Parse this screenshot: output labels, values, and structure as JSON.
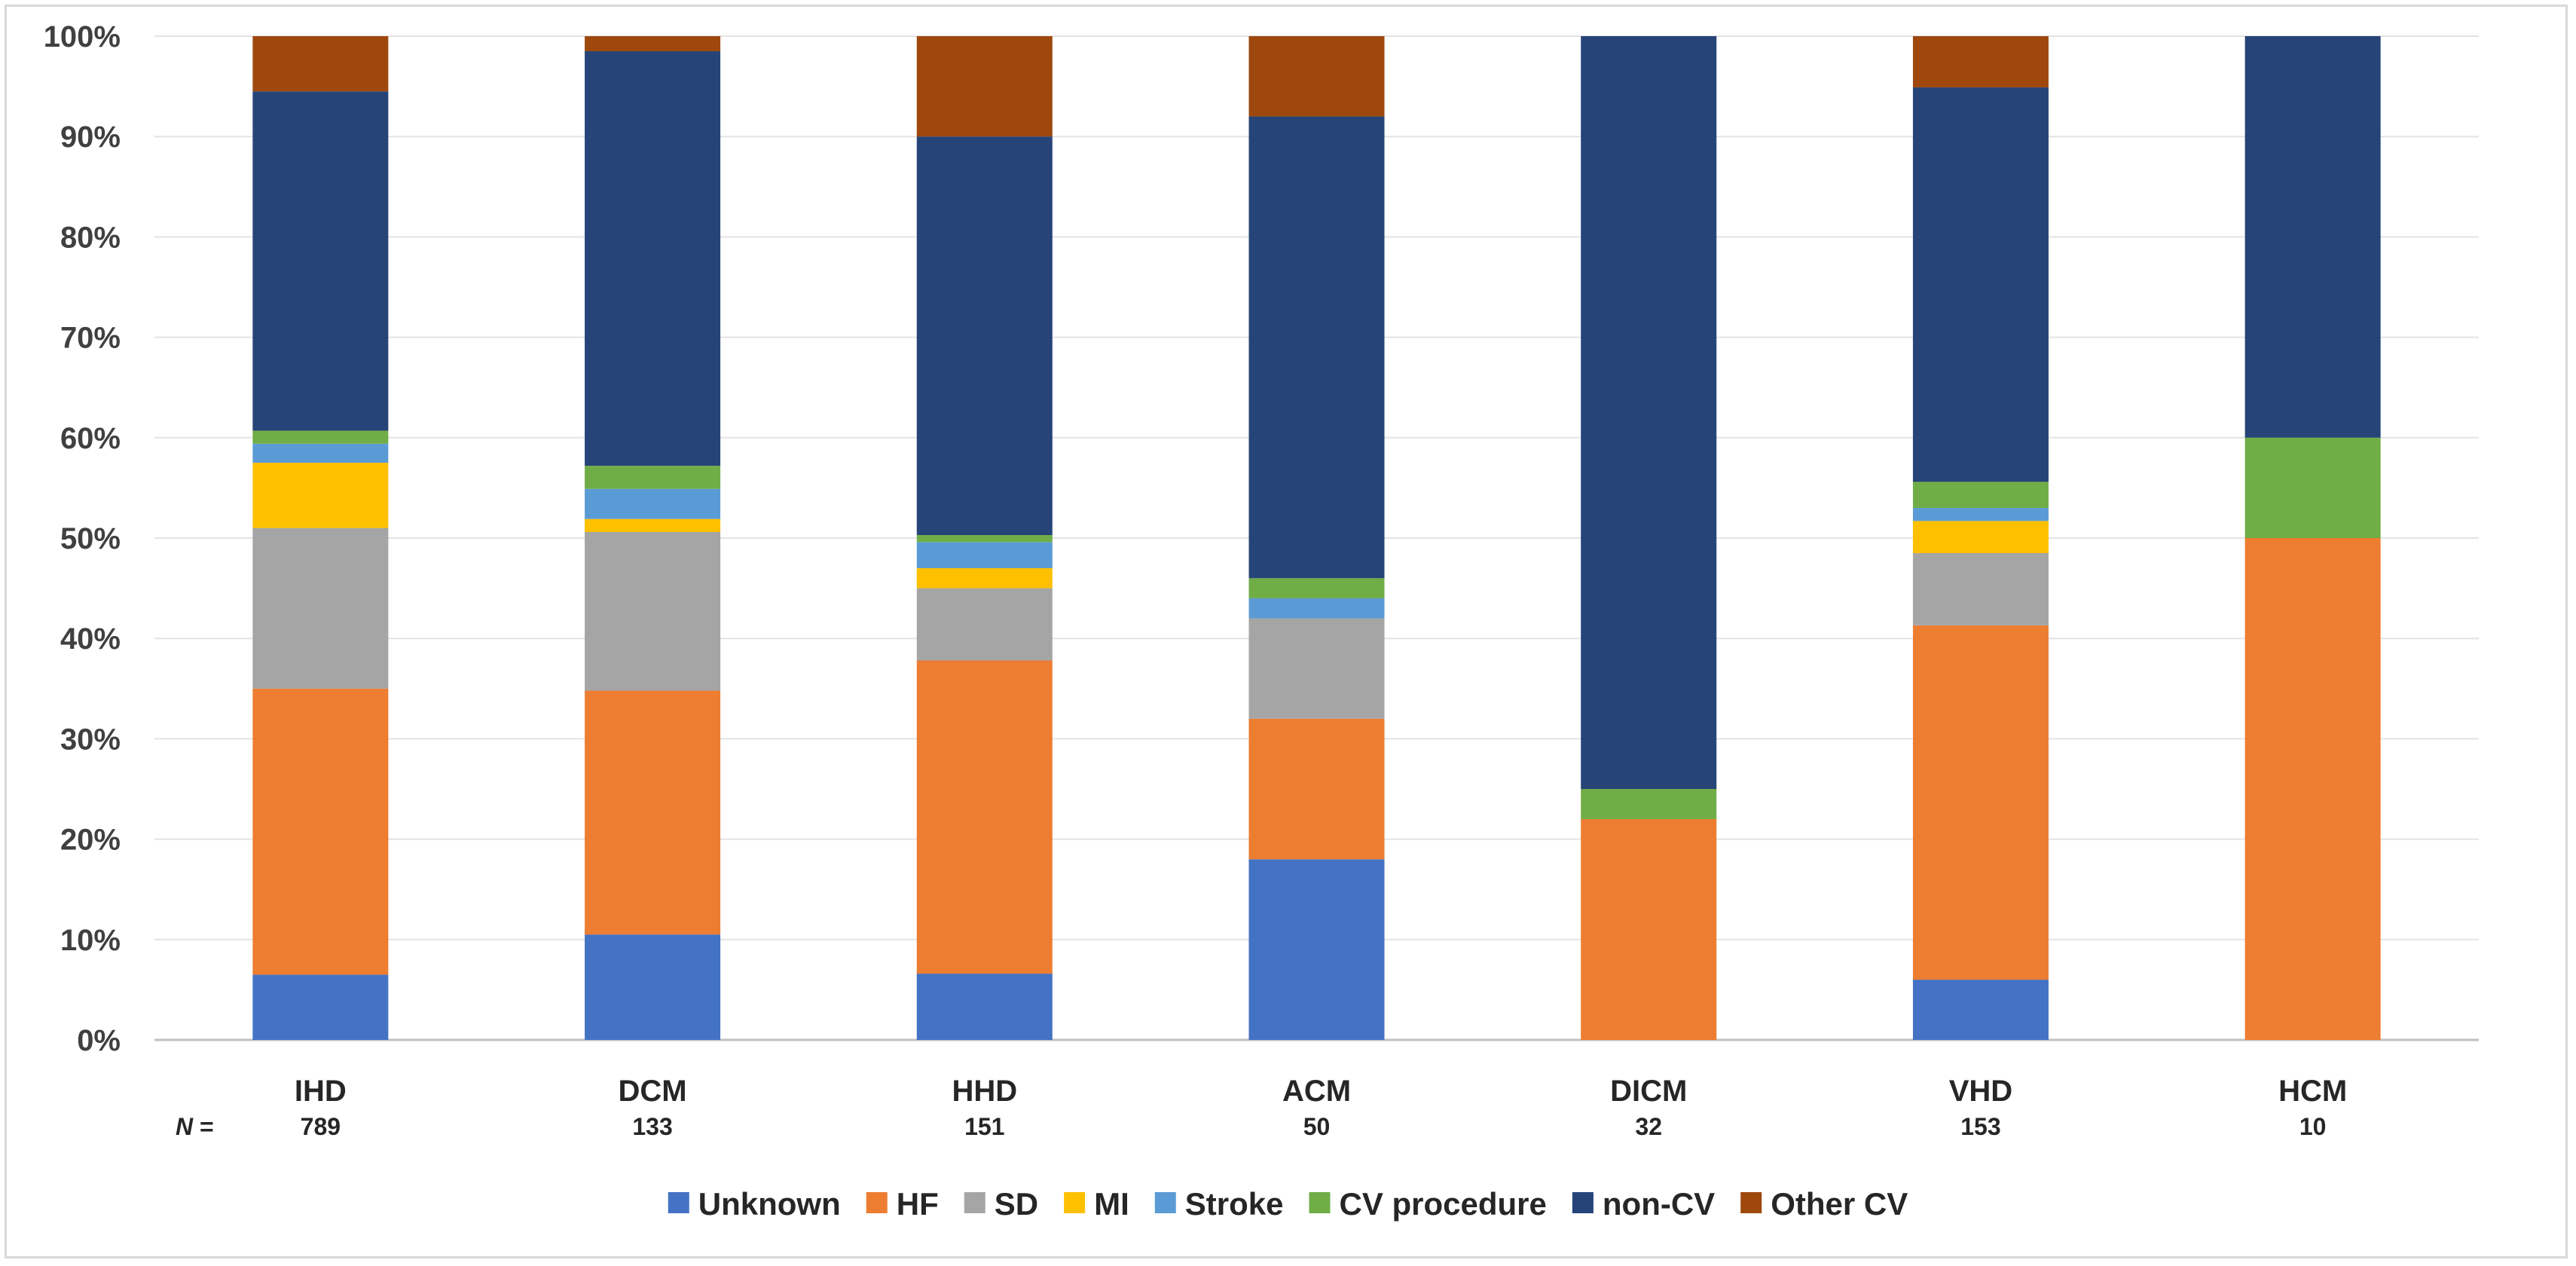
{
  "chart_data": {
    "type": "bar",
    "stacked": true,
    "categories": [
      "IHD",
      "DCM",
      "HHD",
      "ACM",
      "DICM",
      "VHD",
      "HCM"
    ],
    "n_label_prefix": "N",
    "n_label_suffix": " =",
    "n_values": [
      "789",
      "133",
      "151",
      "50",
      "32",
      "153",
      "10"
    ],
    "ylim": [
      0,
      100
    ],
    "yticks": [
      "0%",
      "10%",
      "20%",
      "30%",
      "40%",
      "50%",
      "60%",
      "70%",
      "80%",
      "90%",
      "100%"
    ],
    "grid": true,
    "legend_position": "bottom",
    "series": [
      {
        "name": "Unknown",
        "color": "#4472C4",
        "values": [
          6.5,
          10.5,
          6.6,
          18.0,
          0.0,
          6.0,
          0.0
        ]
      },
      {
        "name": "HF",
        "color": "#ED7D31",
        "values": [
          28.5,
          24.3,
          31.2,
          14.0,
          22.0,
          35.3,
          50.0
        ]
      },
      {
        "name": "SD",
        "color": "#A5A5A5",
        "values": [
          16.0,
          15.8,
          7.2,
          10.0,
          0.0,
          7.2,
          0.0
        ]
      },
      {
        "name": "MI",
        "color": "#FFC000",
        "values": [
          6.5,
          1.3,
          2.0,
          0.0,
          0.0,
          3.2,
          0.0
        ]
      },
      {
        "name": "Stroke",
        "color": "#5B9BD5",
        "values": [
          1.9,
          3.0,
          2.6,
          2.0,
          0.0,
          1.3,
          0.0
        ]
      },
      {
        "name": "CV procedure",
        "color": "#70AD47",
        "values": [
          1.3,
          2.3,
          0.7,
          2.0,
          3.0,
          2.6,
          10.0
        ]
      },
      {
        "name": "non-CV",
        "color": "#264478",
        "values": [
          33.8,
          41.3,
          39.7,
          46.0,
          75.0,
          39.3,
          40.0
        ]
      },
      {
        "name": "Other CV",
        "color": "#9E480E",
        "values": [
          5.5,
          1.5,
          10.0,
          8.0,
          0.0,
          5.1,
          0.0
        ]
      }
    ]
  }
}
